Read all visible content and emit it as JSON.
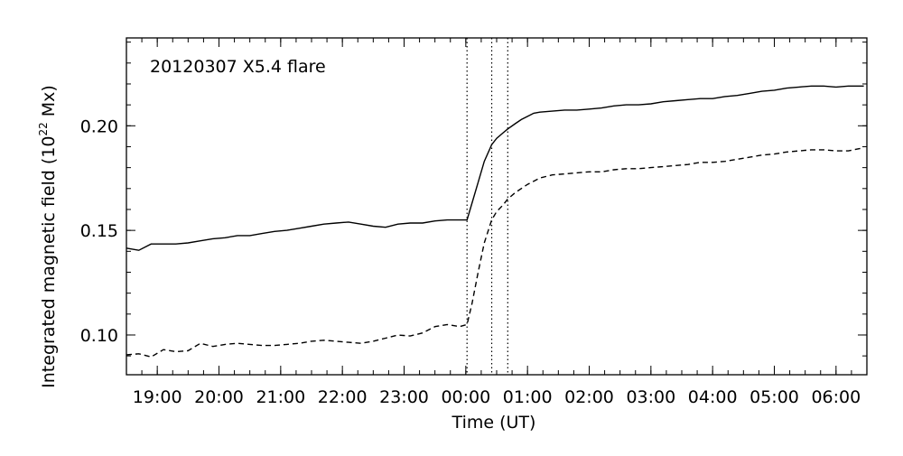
{
  "chart_data": {
    "type": "line",
    "annotation": "20120307 X5.4 flare",
    "xlabel": "Time (UT)",
    "ylabel_main": "Integrated magnetic field (10",
    "ylabel_sup": "22",
    "ylabel_tail": " Mx)",
    "xlim": [
      -5.5,
      6.5
    ],
    "ylim": [
      0.081,
      0.242
    ],
    "x_ticks": [
      {
        "value": -5,
        "label": "19:00"
      },
      {
        "value": -4,
        "label": "20:00"
      },
      {
        "value": -3,
        "label": "21:00"
      },
      {
        "value": -2,
        "label": "22:00"
      },
      {
        "value": -1,
        "label": "23:00"
      },
      {
        "value": 0,
        "label": "00:00"
      },
      {
        "value": 1,
        "label": "01:00"
      },
      {
        "value": 2,
        "label": "02:00"
      },
      {
        "value": 3,
        "label": "03:00"
      },
      {
        "value": 4,
        "label": "04:00"
      },
      {
        "value": 5,
        "label": "05:00"
      },
      {
        "value": 6,
        "label": "06:00"
      }
    ],
    "y_ticks": [
      {
        "value": 0.1,
        "label": "0.10"
      },
      {
        "value": 0.15,
        "label": "0.15"
      },
      {
        "value": 0.2,
        "label": "0.20"
      }
    ],
    "x_minor_step": 0.25,
    "y_minor_step": 0.01,
    "vlines": [
      0.02,
      0.42,
      0.68
    ],
    "series": [
      {
        "style": "solid",
        "x": [
          -5.5,
          -5.3,
          -5.1,
          -4.9,
          -4.7,
          -4.5,
          -4.3,
          -4.1,
          -3.9,
          -3.7,
          -3.5,
          -3.3,
          -3.1,
          -2.9,
          -2.7,
          -2.5,
          -2.3,
          -2.1,
          -1.9,
          -1.7,
          -1.5,
          -1.3,
          -1.1,
          -0.9,
          -0.7,
          -0.5,
          -0.3,
          -0.1,
          0.02,
          0.1,
          0.2,
          0.3,
          0.42,
          0.5,
          0.6,
          0.68,
          0.8,
          0.9,
          1.0,
          1.1,
          1.2,
          1.4,
          1.6,
          1.8,
          2.0,
          2.2,
          2.4,
          2.6,
          2.8,
          3.0,
          3.2,
          3.4,
          3.6,
          3.8,
          4.0,
          4.2,
          4.4,
          4.6,
          4.8,
          5.0,
          5.2,
          5.4,
          5.6,
          5.8,
          6.0,
          6.2,
          6.45
        ],
        "y": [
          0.1415,
          0.1405,
          0.1435,
          0.1435,
          0.1435,
          0.144,
          0.145,
          0.146,
          0.1465,
          0.1475,
          0.1475,
          0.1485,
          0.1495,
          0.15,
          0.151,
          0.152,
          0.153,
          0.1535,
          0.154,
          0.153,
          0.152,
          0.1515,
          0.153,
          0.1535,
          0.1535,
          0.1545,
          0.155,
          0.155,
          0.155,
          0.163,
          0.173,
          0.183,
          0.191,
          0.194,
          0.1965,
          0.1985,
          0.201,
          0.203,
          0.2045,
          0.206,
          0.2065,
          0.207,
          0.2075,
          0.2075,
          0.208,
          0.2085,
          0.2095,
          0.21,
          0.21,
          0.2105,
          0.2115,
          0.212,
          0.2125,
          0.213,
          0.213,
          0.214,
          0.2145,
          0.2155,
          0.2165,
          0.217,
          0.218,
          0.2185,
          0.219,
          0.219,
          0.2185,
          0.219,
          0.219
        ]
      },
      {
        "style": "dashed",
        "x": [
          -5.5,
          -5.3,
          -5.1,
          -4.9,
          -4.7,
          -4.5,
          -4.3,
          -4.1,
          -3.9,
          -3.7,
          -3.5,
          -3.3,
          -3.1,
          -2.9,
          -2.7,
          -2.5,
          -2.3,
          -2.1,
          -1.9,
          -1.7,
          -1.5,
          -1.3,
          -1.1,
          -0.9,
          -0.7,
          -0.5,
          -0.3,
          -0.1,
          0.02,
          0.1,
          0.2,
          0.3,
          0.42,
          0.5,
          0.6,
          0.68,
          0.8,
          0.9,
          1.0,
          1.1,
          1.2,
          1.4,
          1.6,
          1.8,
          2.0,
          2.2,
          2.4,
          2.6,
          2.8,
          3.0,
          3.2,
          3.4,
          3.6,
          3.8,
          4.0,
          4.2,
          4.4,
          4.6,
          4.8,
          5.0,
          5.2,
          5.4,
          5.6,
          5.8,
          6.0,
          6.2,
          6.45
        ],
        "y": [
          0.0905,
          0.091,
          0.0895,
          0.093,
          0.092,
          0.0925,
          0.096,
          0.0945,
          0.0955,
          0.096,
          0.0955,
          0.095,
          0.095,
          0.0955,
          0.096,
          0.097,
          0.0975,
          0.097,
          0.0965,
          0.096,
          0.097,
          0.0985,
          0.1,
          0.0995,
          0.101,
          0.104,
          0.105,
          0.104,
          0.105,
          0.115,
          0.13,
          0.144,
          0.155,
          0.159,
          0.162,
          0.165,
          0.168,
          0.17,
          0.172,
          0.1735,
          0.175,
          0.1765,
          0.177,
          0.1775,
          0.178,
          0.178,
          0.179,
          0.1795,
          0.1795,
          0.18,
          0.1805,
          0.181,
          0.1815,
          0.1825,
          0.1825,
          0.183,
          0.184,
          0.185,
          0.186,
          0.1865,
          0.1875,
          0.188,
          0.1885,
          0.1885,
          0.188,
          0.188,
          0.1895
        ]
      }
    ]
  }
}
